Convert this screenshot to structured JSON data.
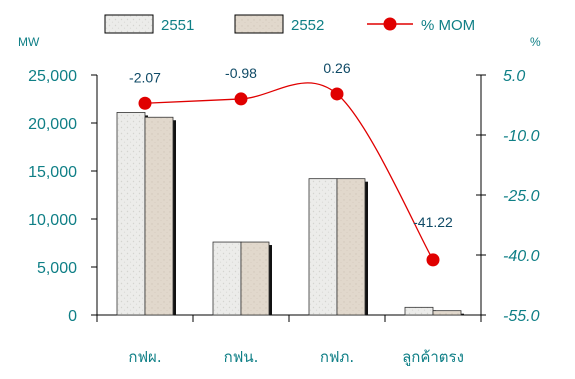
{
  "chart_data": {
    "type": "bar",
    "categories": [
      "กฟผ.",
      "กฟน.",
      "กฟภ.",
      "ลูกค้าตรง"
    ],
    "series": [
      {
        "name": "2551",
        "values": [
          21100,
          7600,
          14200,
          800
        ],
        "color": "#ececea"
      },
      {
        "name": "2552",
        "values": [
          20600,
          7600,
          14200,
          450
        ],
        "color": "#e1d8cc"
      }
    ],
    "line_series": {
      "name": "% MOM",
      "values": [
        -2.07,
        -0.98,
        0.26,
        -41.22
      ],
      "labels": [
        "-2.07",
        "-0.98",
        "0.26",
        "-41.22"
      ],
      "color": "#e00000"
    },
    "y_left": {
      "unit": "MW",
      "ylim": [
        0,
        25000
      ],
      "ticks": [
        "0",
        "5,000",
        "10,000",
        "15,000",
        "20,000",
        "25,000"
      ]
    },
    "y_right": {
      "unit": "%",
      "ylim": [
        -55,
        5
      ],
      "ticks": [
        "5.0",
        "-10.0",
        "-25.0",
        "-40.0",
        "-55.0"
      ]
    },
    "legend_position": "top",
    "grid": false
  }
}
